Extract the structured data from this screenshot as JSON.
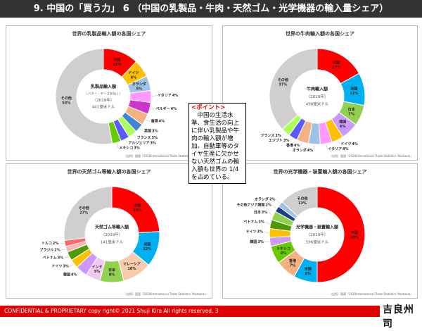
{
  "header": {
    "title": "9. 中国の「買う力」 6 （中国の乳製品・牛肉・天然ゴム・光学機器の輸入量シェア）"
  },
  "point": {
    "heading": "<ポイント>",
    "body": "　中国の生活水準、食生活の向上に伴い乳製品や牛肉の輸入額が増加。自動車等のタイヤ生産に欠かせない天然ゴムの輸入額も世界の 1/4 を占めている。"
  },
  "footer": {
    "text": "CONFIDENTIAL & PROPRIETARY  copy right© 2021   Shuji Kira All rights reserved.    3",
    "logo": "吉良州司"
  },
  "chart_data": [
    {
      "type": "pie",
      "title": "世界の乳製品輸入額の各国シェア",
      "center_title": "乳製品輸入額",
      "center_sub": "（バター・チーズを除く）",
      "center_year": "（2019年）",
      "center_total": "441億米ドル",
      "source": "（出所）国連『2020International Trade Statistics Yearbook』",
      "slices": [
        {
          "label": "中国",
          "value": 12,
          "color": "#ff0000"
        },
        {
          "label": "ドイツ",
          "value": 6,
          "color": "#ffc000"
        },
        {
          "label": "オランダ",
          "value": 5,
          "color": "#9dc3e6"
        },
        {
          "label": "イタリア",
          "value": 4,
          "color": "#ff99ff"
        },
        {
          "label": "ベルギー",
          "value": 4,
          "color": "#cc33cc"
        },
        {
          "label": "香港",
          "value": 4,
          "color": "#f4b183"
        },
        {
          "label": "英国",
          "value": 3,
          "color": "#3f87d4"
        },
        {
          "label": "フランス",
          "value": 3,
          "color": "#adff5c"
        },
        {
          "label": "アルジェリア",
          "value": 3,
          "color": "#5b5bff"
        },
        {
          "label": "メキシコ",
          "value": 3,
          "color": "#66cc00"
        },
        {
          "label": "その他",
          "value": 53,
          "color": "#d0cece"
        }
      ]
    },
    {
      "type": "pie",
      "title": "世界の牛肉輸入額の各国シェア",
      "center_title": "牛肉輸入額",
      "center_year": "（2019年）",
      "center_total": "498億米ドル",
      "source": "（出所）国連『2020International Trade Statistics Yearbook』",
      "slices": [
        {
          "label": "中国",
          "value": 17,
          "color": "#ff0000"
        },
        {
          "label": "米国",
          "value": 11,
          "color": "#00b0f0"
        },
        {
          "label": "日本",
          "value": 7,
          "color": "#92d050"
        },
        {
          "label": "韓国",
          "value": 6,
          "color": "#cc99ff"
        },
        {
          "label": "ドイツ",
          "value": 4,
          "color": "#ffc000"
        },
        {
          "label": "イタリア",
          "value": 4,
          "color": "#ff99ff"
        },
        {
          "label": "オランダ",
          "value": 4,
          "color": "#9dc3e6"
        },
        {
          "label": "香港",
          "value": 4,
          "color": "#f4b183"
        },
        {
          "label": "エジプト",
          "value": 3,
          "color": "#5b5bff"
        },
        {
          "label": "フランス",
          "value": 3,
          "color": "#adff5c"
        },
        {
          "label": "その他",
          "value": 37,
          "color": "#d0cece"
        }
      ]
    },
    {
      "type": "pie",
      "title": "世界の天然ゴム等輸入額の各国シェア",
      "center_title": "天然ゴム等輸入額",
      "center_year": "（2019年）",
      "center_total": "141億米ドル",
      "source": "（出所）国連『2020International Trade Statistics Yearbook』",
      "slices": [
        {
          "label": "中国",
          "value": 24,
          "color": "#ff0000"
        },
        {
          "label": "米国",
          "value": 12,
          "color": "#00b0f0"
        },
        {
          "label": "マレーシア",
          "value": 10,
          "color": "#f8cbad"
        },
        {
          "label": "日本",
          "value": 8,
          "color": "#92d050"
        },
        {
          "label": "インド",
          "value": 5,
          "color": "#f0c8f0"
        },
        {
          "label": "韓国",
          "value": 4,
          "color": "#cc99ff"
        },
        {
          "label": "ドイツ",
          "value": 3,
          "color": "#ffc000"
        },
        {
          "label": "ベトナム",
          "value": 3,
          "color": "#4e9a06"
        },
        {
          "label": "ブラジル",
          "value": 2,
          "color": "#ffb3b3"
        },
        {
          "label": "トルコ",
          "value": 2,
          "color": "#ff6666"
        },
        {
          "label": "その他",
          "value": 27,
          "color": "#d0cece"
        }
      ]
    },
    {
      "type": "pie",
      "title": "世界の光学機器・装置輸入額の各国シェア",
      "center_title": "光学機器・装置輸入額",
      "center_year": "（2019年）",
      "center_total": "596億米ドル",
      "source": "（出所）国連『2020International Trade Statistics Yearbook』",
      "slices": [
        {
          "label": "中国",
          "value": 50,
          "color": "#ff0000"
        },
        {
          "label": "米国",
          "value": 8,
          "color": "#00b0f0"
        },
        {
          "label": "香港",
          "value": 7,
          "color": "#f4b183"
        },
        {
          "label": "メキシコ",
          "value": 6,
          "color": "#66cc00"
        },
        {
          "label": "韓国",
          "value": 3,
          "color": "#cc99ff"
        },
        {
          "label": "ドイツ",
          "value": 3,
          "color": "#ffc000"
        },
        {
          "label": "ベトナム",
          "value": 3,
          "color": "#4e9a06"
        },
        {
          "label": "日本",
          "value": 3,
          "color": "#92d050"
        },
        {
          "label": "その他アジア諸国",
          "value": 2,
          "color": "#1f3c88"
        },
        {
          "label": "オランダ",
          "value": 2,
          "color": "#9dc3e6"
        },
        {
          "label": "その他",
          "value": 13,
          "color": "#d0cece"
        }
      ]
    }
  ]
}
